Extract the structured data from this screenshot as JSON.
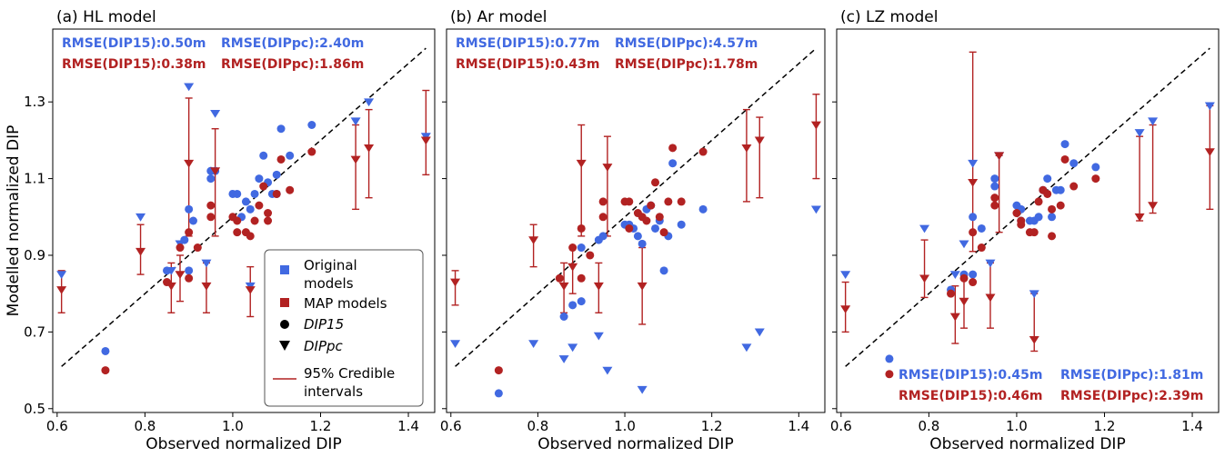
{
  "colors": {
    "original": "#4169E1",
    "map": "#B22222",
    "diagonal": "#000000"
  },
  "legend": {
    "items": [
      {
        "label_lines": [
          "Original",
          "models"
        ],
        "marker": "square",
        "color": "#4169E1"
      },
      {
        "label_lines": [
          "MAP models"
        ],
        "marker": "square",
        "color": "#B22222"
      },
      {
        "label_lines": [
          "DIP15"
        ],
        "marker": "circle",
        "color": "#000000",
        "italic_part": "DIP",
        "rest": "15"
      },
      {
        "label_lines": [
          "DIPpc"
        ],
        "marker": "triangle-down",
        "color": "#000000",
        "italic_part": "DIPpc",
        "rest": ""
      },
      {
        "label_lines": [
          "95% Credible",
          "intervals"
        ],
        "marker": "line",
        "color": "#B22222"
      }
    ]
  },
  "chart_data": [
    {
      "type": "scatter",
      "title": "(a)   HL model",
      "xlabel": "Observed normalized DIP",
      "ylabel": "Modelled normalized DIP",
      "xlim": [
        0.59,
        1.46
      ],
      "ylim": [
        0.49,
        1.49
      ],
      "xticks": [
        "0.6",
        "0.8",
        "1.0",
        "1.2",
        "1.4"
      ],
      "yticks": [
        "0.5",
        "0.7",
        "0.9",
        "1.1",
        "1.3"
      ],
      "rmse_position": "top",
      "rmse_original": [
        "RMSE(DIP15):0.50m",
        "RMSE(DIPpc):2.40m"
      ],
      "rmse_map": [
        "RMSE(DIP15):0.38m",
        "RMSE(DIPpc):1.86m"
      ],
      "original_dip15": [
        [
          0.71,
          0.65
        ],
        [
          0.85,
          0.86
        ],
        [
          0.89,
          0.94
        ],
        [
          0.9,
          1.02
        ],
        [
          0.91,
          0.99
        ],
        [
          0.9,
          0.86
        ],
        [
          0.95,
          1.1
        ],
        [
          0.95,
          1.12
        ],
        [
          0.96,
          1.12
        ],
        [
          1.0,
          1.06
        ],
        [
          1.01,
          1.06
        ],
        [
          1.02,
          1.0
        ],
        [
          1.03,
          1.04
        ],
        [
          1.04,
          1.02
        ],
        [
          1.05,
          1.06
        ],
        [
          1.06,
          1.1
        ],
        [
          1.07,
          1.16
        ],
        [
          1.08,
          1.09
        ],
        [
          1.09,
          1.06
        ],
        [
          1.1,
          1.06
        ],
        [
          1.1,
          1.11
        ],
        [
          1.11,
          1.23
        ],
        [
          1.13,
          1.16
        ],
        [
          1.18,
          1.24
        ]
      ],
      "original_dippc": [
        [
          0.61,
          0.85
        ],
        [
          0.79,
          1.0
        ],
        [
          0.86,
          0.86
        ],
        [
          0.88,
          0.93
        ],
        [
          0.9,
          1.34
        ],
        [
          0.94,
          0.88
        ],
        [
          0.96,
          1.27
        ],
        [
          1.04,
          0.82
        ],
        [
          1.28,
          1.25
        ],
        [
          1.31,
          1.3
        ],
        [
          1.44,
          1.21
        ]
      ],
      "map_dip15": [
        [
          0.71,
          0.6
        ],
        [
          0.85,
          0.83
        ],
        [
          0.88,
          0.92
        ],
        [
          0.9,
          0.96
        ],
        [
          0.9,
          0.84
        ],
        [
          0.92,
          0.92
        ],
        [
          0.95,
          1.0
        ],
        [
          0.95,
          1.03
        ],
        [
          1.0,
          1.0
        ],
        [
          1.01,
          0.99
        ],
        [
          1.01,
          0.96
        ],
        [
          1.03,
          0.96
        ],
        [
          1.04,
          0.95
        ],
        [
          1.05,
          0.99
        ],
        [
          1.06,
          1.03
        ],
        [
          1.07,
          1.08
        ],
        [
          1.08,
          1.01
        ],
        [
          1.08,
          0.99
        ],
        [
          1.1,
          1.06
        ],
        [
          1.11,
          1.15
        ],
        [
          1.13,
          1.07
        ],
        [
          1.18,
          1.17
        ]
      ],
      "map_dippc": [
        [
          0.61,
          0.81,
          0.75,
          0.86
        ],
        [
          0.79,
          0.91,
          0.85,
          0.98
        ],
        [
          0.86,
          0.82,
          0.75,
          0.88
        ],
        [
          0.88,
          0.85,
          0.78,
          0.9
        ],
        [
          0.9,
          1.14,
          0.95,
          1.31
        ],
        [
          0.94,
          0.82,
          0.75,
          0.88
        ],
        [
          0.96,
          1.12,
          0.95,
          1.23
        ],
        [
          1.04,
          0.81,
          0.74,
          0.87
        ],
        [
          1.28,
          1.15,
          1.02,
          1.24
        ],
        [
          1.31,
          1.18,
          1.05,
          1.28
        ],
        [
          1.44,
          1.2,
          1.11,
          1.33
        ]
      ]
    },
    {
      "type": "scatter",
      "title": "(b)   Ar model",
      "xlabel": "Observed normalized DIP",
      "ylabel": "",
      "xlim": [
        0.59,
        1.46
      ],
      "ylim": [
        0.49,
        1.49
      ],
      "xticks": [
        "0.6",
        "0.8",
        "1.0",
        "1.2",
        "1.4"
      ],
      "yticks": [],
      "rmse_position": "top",
      "rmse_original": [
        "RMSE(DIP15):0.77m",
        "RMSE(DIPpc):4.57m"
      ],
      "rmse_map": [
        "RMSE(DIP15):0.43m",
        "RMSE(DIPpc):1.78m"
      ],
      "original_dip15": [
        [
          0.71,
          0.54
        ],
        [
          0.86,
          0.74
        ],
        [
          0.88,
          0.77
        ],
        [
          0.9,
          0.78
        ],
        [
          0.9,
          0.92
        ],
        [
          0.94,
          0.94
        ],
        [
          0.95,
          0.95
        ],
        [
          1.0,
          0.98
        ],
        [
          1.01,
          0.98
        ],
        [
          1.02,
          0.97
        ],
        [
          1.03,
          0.95
        ],
        [
          1.04,
          0.93
        ],
        [
          1.05,
          1.02
        ],
        [
          1.06,
          1.03
        ],
        [
          1.07,
          0.97
        ],
        [
          1.08,
          0.99
        ],
        [
          1.09,
          0.86
        ],
        [
          1.1,
          0.95
        ],
        [
          1.11,
          1.14
        ],
        [
          1.13,
          0.98
        ],
        [
          1.18,
          1.02
        ]
      ],
      "original_dippc": [
        [
          0.61,
          0.67
        ],
        [
          0.79,
          0.67
        ],
        [
          0.86,
          0.63
        ],
        [
          0.88,
          0.66
        ],
        [
          0.94,
          0.69
        ],
        [
          0.96,
          0.6
        ],
        [
          1.04,
          0.55
        ],
        [
          1.28,
          0.66
        ],
        [
          1.31,
          0.7
        ],
        [
          1.44,
          1.02
        ]
      ],
      "map_dip15": [
        [
          0.71,
          0.6
        ],
        [
          0.85,
          0.84
        ],
        [
          0.88,
          0.92
        ],
        [
          0.9,
          0.97
        ],
        [
          0.9,
          0.84
        ],
        [
          0.92,
          0.9
        ],
        [
          0.95,
          1.0
        ],
        [
          0.95,
          1.04
        ],
        [
          1.0,
          1.04
        ],
        [
          1.01,
          1.04
        ],
        [
          1.01,
          0.97
        ],
        [
          1.03,
          1.01
        ],
        [
          1.04,
          1.0
        ],
        [
          1.05,
          0.99
        ],
        [
          1.06,
          1.03
        ],
        [
          1.07,
          1.09
        ],
        [
          1.08,
          1.0
        ],
        [
          1.09,
          0.96
        ],
        [
          1.1,
          1.04
        ],
        [
          1.11,
          1.18
        ],
        [
          1.13,
          1.04
        ],
        [
          1.18,
          1.17
        ]
      ],
      "map_dippc": [
        [
          0.61,
          0.83,
          0.77,
          0.86
        ],
        [
          0.79,
          0.94,
          0.87,
          0.98
        ],
        [
          0.86,
          0.82,
          0.75,
          0.88
        ],
        [
          0.88,
          0.87,
          0.8,
          0.92
        ],
        [
          0.9,
          1.14,
          0.95,
          1.24
        ],
        [
          0.94,
          0.82,
          0.75,
          0.88
        ],
        [
          0.96,
          1.13,
          0.95,
          1.21
        ],
        [
          1.04,
          0.82,
          0.72,
          0.92
        ],
        [
          1.28,
          1.18,
          1.04,
          1.28
        ],
        [
          1.31,
          1.2,
          1.05,
          1.26
        ],
        [
          1.44,
          1.24,
          1.1,
          1.32
        ]
      ]
    },
    {
      "type": "scatter",
      "title": "(c)   LZ model",
      "xlabel": "Observed normalized DIP",
      "ylabel": "",
      "xlim": [
        0.59,
        1.46
      ],
      "ylim": [
        0.49,
        1.49
      ],
      "xticks": [
        "0.6",
        "0.8",
        "1.0",
        "1.2",
        "1.4"
      ],
      "yticks": [],
      "rmse_position": "bottom",
      "rmse_original": [
        "RMSE(DIP15):0.45m",
        "RMSE(DIPpc):1.81m"
      ],
      "rmse_map": [
        "RMSE(DIP15):0.46m",
        "RMSE(DIPpc):2.39m"
      ],
      "original_dip15": [
        [
          0.71,
          0.63
        ],
        [
          0.85,
          0.81
        ],
        [
          0.88,
          0.85
        ],
        [
          0.9,
          0.85
        ],
        [
          0.9,
          1.0
        ],
        [
          0.92,
          0.97
        ],
        [
          0.95,
          1.08
        ],
        [
          0.95,
          1.1
        ],
        [
          1.0,
          1.03
        ],
        [
          1.01,
          1.02
        ],
        [
          1.01,
          0.99
        ],
        [
          1.03,
          0.99
        ],
        [
          1.04,
          0.99
        ],
        [
          1.05,
          1.0
        ],
        [
          1.06,
          1.07
        ],
        [
          1.07,
          1.1
        ],
        [
          1.08,
          1.0
        ],
        [
          1.09,
          1.07
        ],
        [
          1.1,
          1.07
        ],
        [
          1.11,
          1.19
        ],
        [
          1.13,
          1.14
        ],
        [
          1.18,
          1.13
        ]
      ],
      "original_dippc": [
        [
          0.61,
          0.85
        ],
        [
          0.79,
          0.97
        ],
        [
          0.86,
          0.85
        ],
        [
          0.88,
          0.93
        ],
        [
          0.9,
          1.14
        ],
        [
          0.94,
          0.88
        ],
        [
          0.96,
          1.16
        ],
        [
          1.04,
          0.8
        ],
        [
          1.28,
          1.22
        ],
        [
          1.31,
          1.25
        ],
        [
          1.44,
          1.29
        ]
      ],
      "map_dip15": [
        [
          0.71,
          0.59
        ],
        [
          0.85,
          0.8
        ],
        [
          0.88,
          0.84
        ],
        [
          0.9,
          0.96
        ],
        [
          0.9,
          0.83
        ],
        [
          0.92,
          0.92
        ],
        [
          0.95,
          1.03
        ],
        [
          0.95,
          1.05
        ],
        [
          1.0,
          1.01
        ],
        [
          1.01,
          0.99
        ],
        [
          1.01,
          0.98
        ],
        [
          1.03,
          0.96
        ],
        [
          1.04,
          0.96
        ],
        [
          1.05,
          1.04
        ],
        [
          1.06,
          1.07
        ],
        [
          1.07,
          1.06
        ],
        [
          1.08,
          1.02
        ],
        [
          1.08,
          0.95
        ],
        [
          1.1,
          1.03
        ],
        [
          1.11,
          1.15
        ],
        [
          1.13,
          1.08
        ],
        [
          1.18,
          1.1
        ]
      ],
      "map_dippc": [
        [
          0.61,
          0.76,
          0.7,
          0.83
        ],
        [
          0.79,
          0.84,
          0.79,
          0.94
        ],
        [
          0.86,
          0.74,
          0.67,
          0.82
        ],
        [
          0.88,
          0.78,
          0.71,
          0.84
        ],
        [
          0.9,
          1.09,
          0.91,
          1.43
        ],
        [
          0.94,
          0.79,
          0.71,
          0.88
        ],
        [
          0.96,
          1.16,
          0.96,
          1.16
        ],
        [
          1.04,
          0.68,
          0.65,
          0.8
        ],
        [
          1.28,
          1.0,
          0.99,
          1.21
        ],
        [
          1.31,
          1.03,
          1.01,
          1.24
        ],
        [
          1.44,
          1.17,
          1.02,
          1.29
        ]
      ]
    }
  ]
}
